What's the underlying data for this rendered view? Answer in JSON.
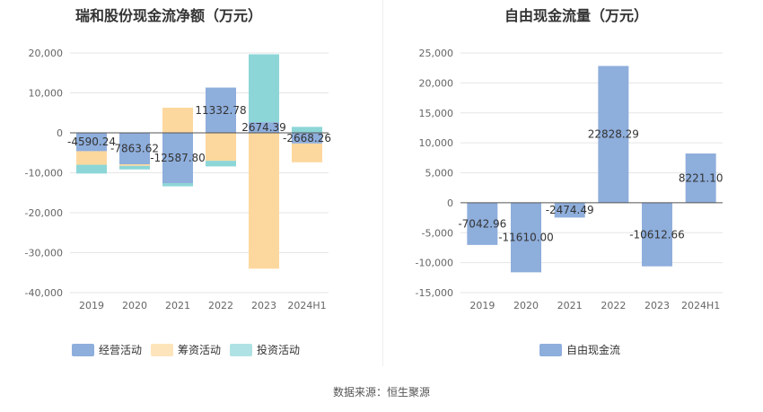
{
  "chart_data": [
    {
      "type": "bar",
      "stacked": true,
      "title": "瑞和股份现金流净额（万元）",
      "categories": [
        "2019",
        "2020",
        "2021",
        "2022",
        "2023",
        "2024H1"
      ],
      "ylim": [
        -40000,
        20000
      ],
      "yticks": [
        "20,000",
        "10,000",
        "0",
        "-10,000",
        "-20,000",
        "-30,000",
        "-40,000"
      ],
      "ytick_values": [
        20000,
        10000,
        0,
        -10000,
        -20000,
        -30000,
        -40000
      ],
      "grid": true,
      "legend_position": "bottom",
      "series": [
        {
          "name": "经营活动",
          "color": "#8eaedc",
          "values": [
            -4590.24,
            -7863.62,
            -12587.8,
            11332.78,
            2674.39,
            -2668.26
          ],
          "labels": [
            "-4590.24",
            "-7863.62",
            "-12587.80",
            "11332.78",
            "2674.39",
            "-2668.26"
          ]
        },
        {
          "name": "筹资活动",
          "color": "#fdd89e",
          "values": [
            -3400,
            -400,
            6300,
            -7000,
            -34000,
            -4700
          ]
        },
        {
          "name": "投资活动",
          "color": "#8dd6d8",
          "values": [
            -2200,
            -900,
            -800,
            -1400,
            17000,
            1500
          ]
        }
      ]
    },
    {
      "type": "bar",
      "title": "自由现金流量（万元）",
      "categories": [
        "2019",
        "2020",
        "2021",
        "2022",
        "2023",
        "2024H1"
      ],
      "ylim": [
        -15000,
        25000
      ],
      "yticks": [
        "25,000",
        "20,000",
        "15,000",
        "10,000",
        "5,000",
        "0",
        "-5,000",
        "-10,000",
        "-15,000"
      ],
      "ytick_values": [
        25000,
        20000,
        15000,
        10000,
        5000,
        0,
        -5000,
        -10000,
        -15000
      ],
      "grid": true,
      "legend_position": "bottom",
      "series": [
        {
          "name": "自由现金流",
          "color": "#8eaedc",
          "values": [
            -7042.96,
            -11610.0,
            -2474.49,
            22828.29,
            -10612.66,
            8221.1
          ],
          "labels": [
            "-7042.96",
            "-11610.00",
            "-2474.49",
            "22828.29",
            "-10612.66",
            "8221.10"
          ]
        }
      ]
    }
  ],
  "footer": {
    "source": "数据来源：恒生聚源"
  }
}
